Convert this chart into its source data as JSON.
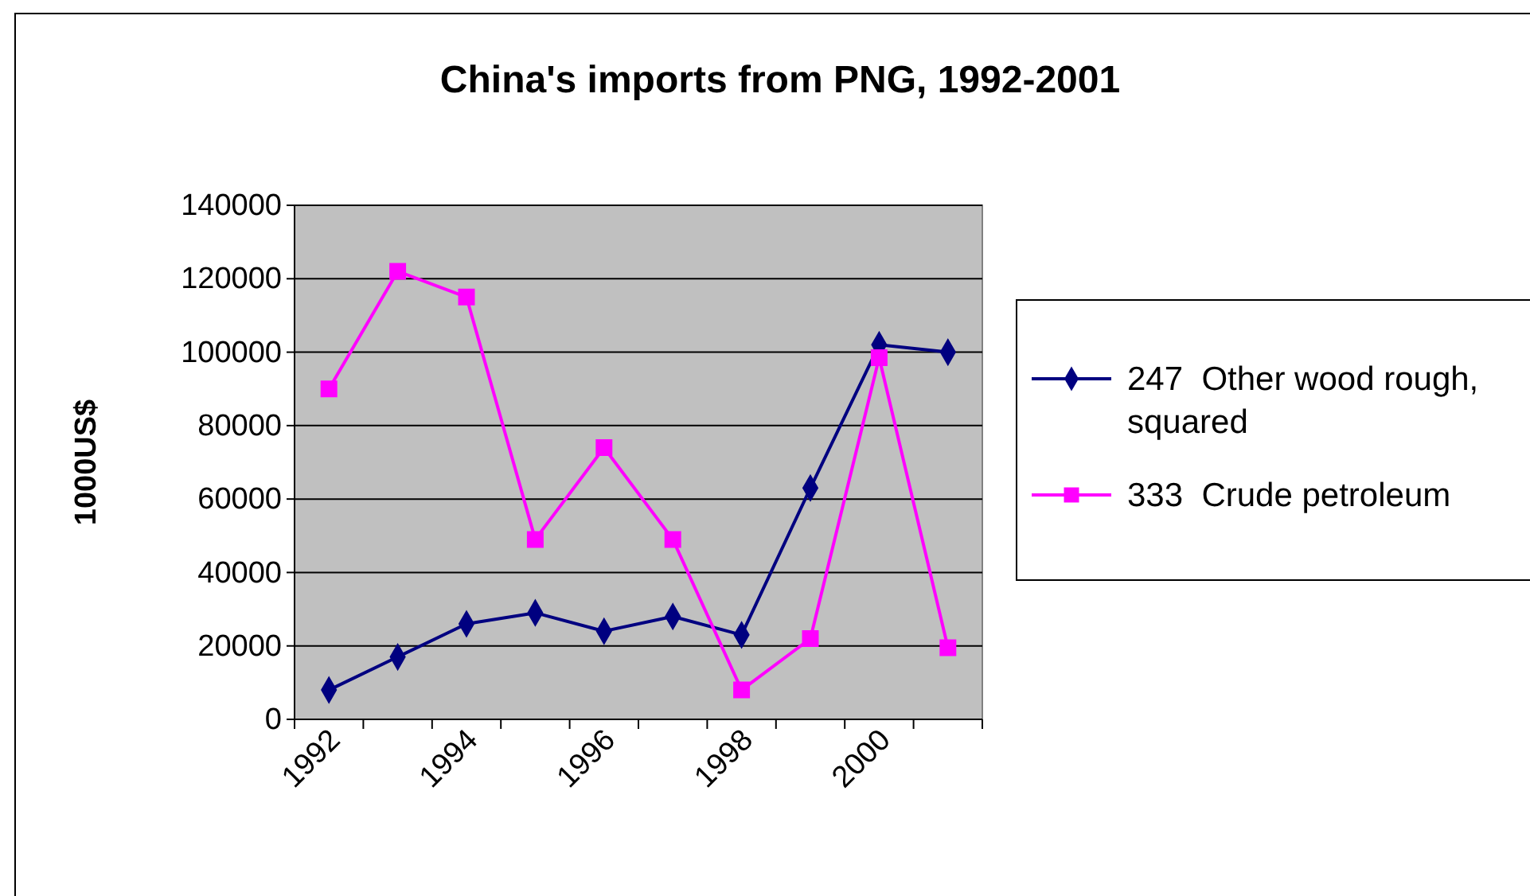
{
  "chart_data": {
    "type": "line",
    "title": "China's imports from PNG, 1992-2001",
    "ylabel": "1000US$",
    "categories": [
      "1992",
      null,
      "1994",
      null,
      "1996",
      null,
      "1998",
      null,
      "2000",
      null
    ],
    "series": [
      {
        "name": "247  Other wood rough, squared",
        "color": "#000080",
        "marker": "diamond",
        "values": [
          8000,
          17000,
          26000,
          29000,
          24000,
          28000,
          23000,
          63000,
          102000,
          100000
        ]
      },
      {
        "name": "333  Crude petroleum",
        "color": "#ff00ff",
        "marker": "square",
        "values": [
          90000,
          122000,
          115000,
          49000,
          74000,
          49000,
          8000,
          22000,
          98500,
          19500
        ]
      }
    ],
    "ylim": [
      0,
      140000
    ],
    "yticks": [
      0,
      20000,
      40000,
      60000,
      80000,
      100000,
      120000,
      140000
    ],
    "grid": "y",
    "legend": "right"
  }
}
